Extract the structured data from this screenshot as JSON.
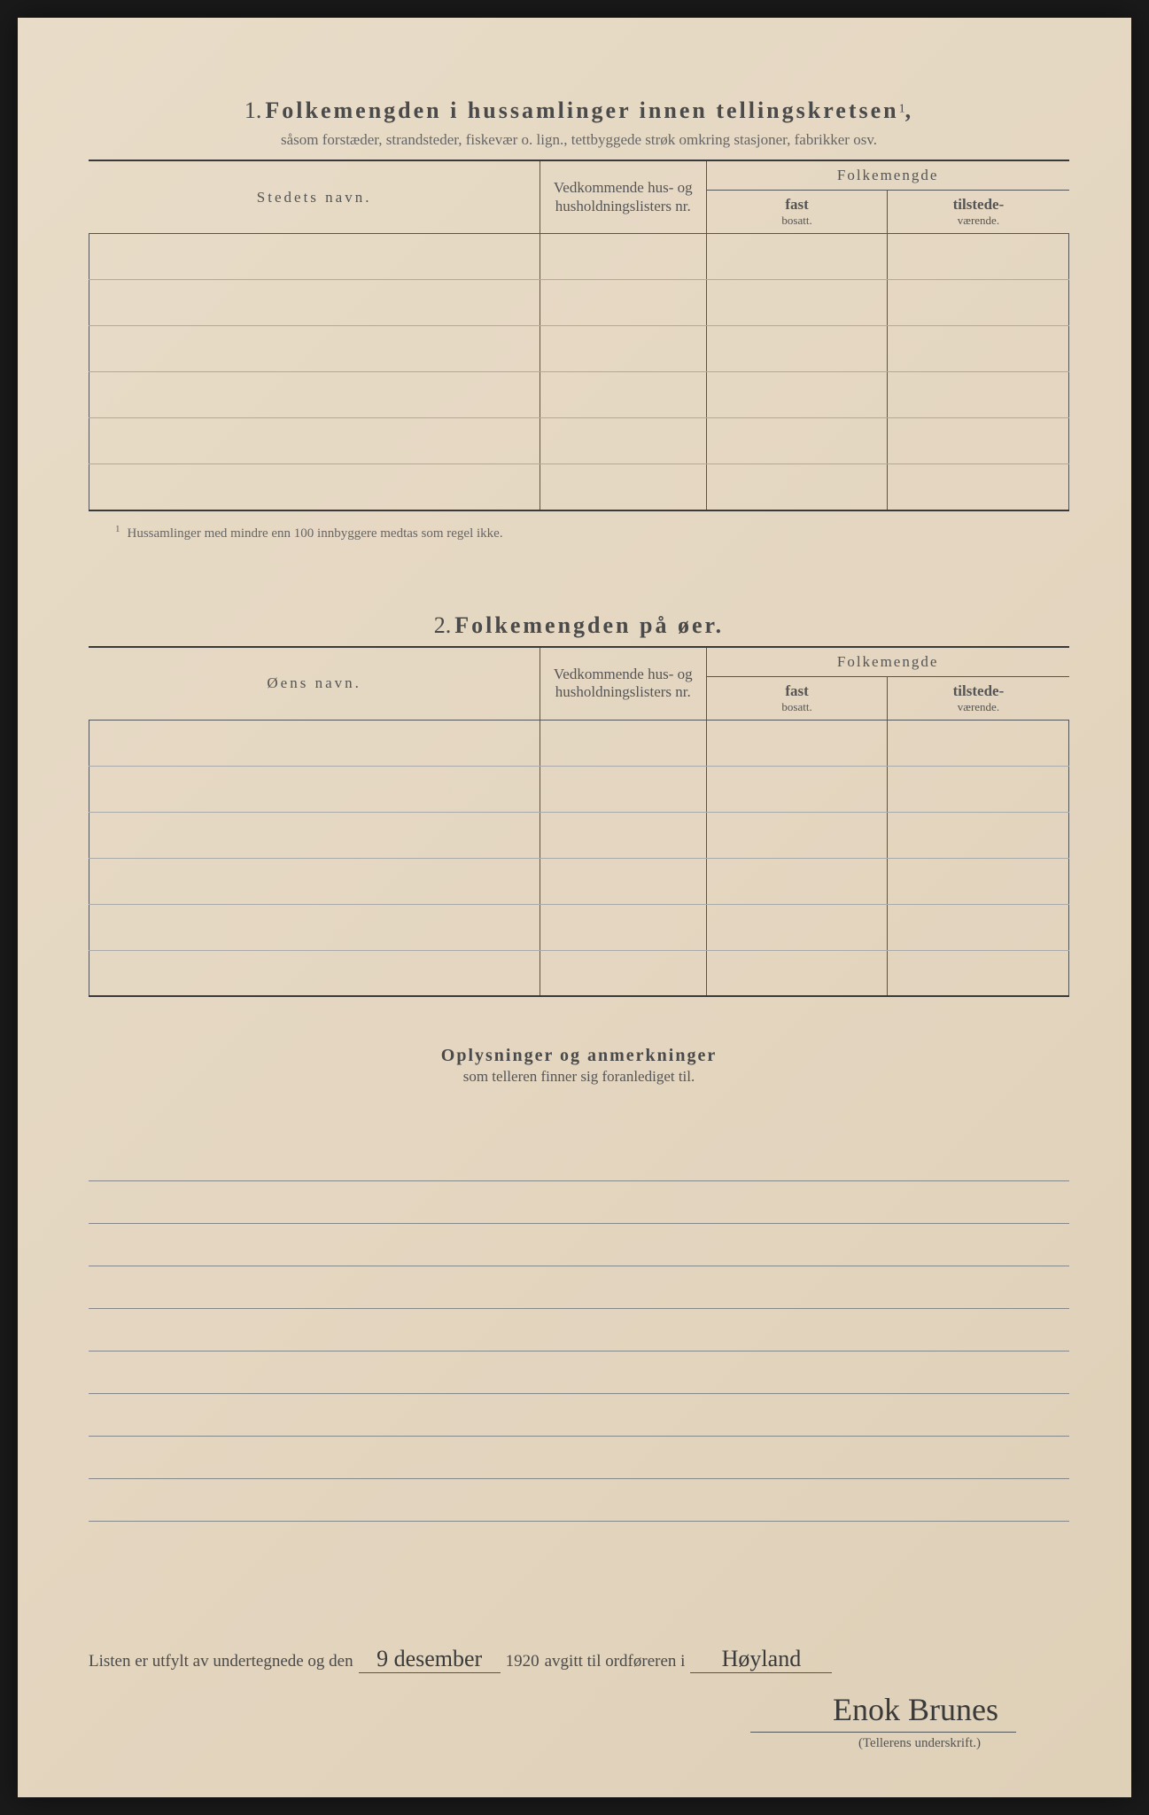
{
  "section1": {
    "number": "1.",
    "title": "Folkemengden i hussamlinger innen tellingskretsen",
    "title_sup": "1",
    "title_comma": ",",
    "subtitle": "såsom forstæder, strandsteder, fiskevær o. lign., tettbyggede strøk omkring stasjoner, fabrikker osv.",
    "headers": {
      "name": "Stedets navn.",
      "ved": "Vedkommende hus- og husholdningslisters nr.",
      "folk": "Folkemengde",
      "fast_bold": "fast",
      "fast_small": "bosatt.",
      "til_bold": "tilstede-",
      "til_small": "værende."
    },
    "footnote_sup": "1",
    "footnote": "Hussamlinger med mindre enn 100 innbyggere medtas som regel ikke.",
    "row_count": 6
  },
  "section2": {
    "number": "2.",
    "title": "Folkemengden på øer.",
    "headers": {
      "name": "Øens navn.",
      "ved": "Vedkommende hus- og husholdningslisters nr.",
      "folk": "Folkemengde",
      "fast_bold": "fast",
      "fast_small": "bosatt.",
      "til_bold": "tilstede-",
      "til_small": "værende."
    },
    "row_count": 6
  },
  "remarks": {
    "title": "Oplysninger og anmerkninger",
    "subtitle": "som telleren finner sig foranlediget til."
  },
  "lined_rows": 9,
  "signature": {
    "prefix": "Listen er utfylt av undertegnede og den",
    "date_written": "9 desember",
    "year": "1920",
    "middle": "avgitt til ordføreren i",
    "place_written": "Høyland",
    "signature_text": "Enok Brunes",
    "caption": "(Tellerens underskrift.)"
  },
  "colors": {
    "paper_bg": "#e4d6c0",
    "ink": "#4a4a4a",
    "rule": "#555555",
    "handwriting": "#3a3a3a"
  }
}
